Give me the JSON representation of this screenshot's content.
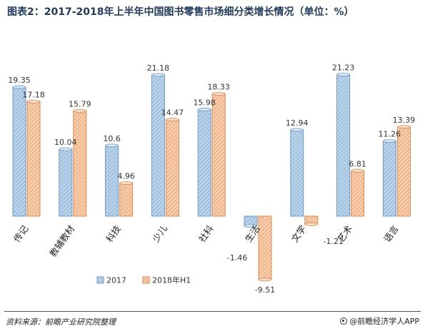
{
  "title": "图表2：2017-2018年上半年中国图书零售市场细分类增长情况（单位：%）",
  "source": "资料来源：前瞻产业研究院整理",
  "brand": "@前瞻经济学人APP",
  "brand_icon": "logo-circle-icon",
  "colors": {
    "s2017": "#9dbfdf",
    "s2017_edge": "#6f99c4",
    "s2018": "#f4b88a",
    "s2018_edge": "#d98a4f"
  },
  "chart_data": {
    "type": "bar",
    "categories": [
      "传记",
      "教辅教材",
      "科技",
      "少儿",
      "社科",
      "生活",
      "文学",
      "艺术",
      "语言"
    ],
    "series": [
      {
        "name": "2017",
        "values": [
          19.35,
          10.04,
          10.6,
          21.18,
          15.98,
          -1.46,
          12.94,
          21.23,
          11.26
        ]
      },
      {
        "name": "2018年H1",
        "values": [
          17.18,
          15.79,
          4.96,
          14.47,
          18.33,
          -9.51,
          -1.21,
          6.81,
          13.39
        ]
      }
    ],
    "labels": [
      [
        "19.35",
        "10.04",
        "10.6",
        "21.18",
        "15.98",
        "-1.46",
        "12.94",
        "21.23",
        "11.26"
      ],
      [
        "17.18",
        "15.79",
        "4.96",
        "14.47",
        "18.33",
        "-9.51",
        "-1.21",
        "6.81",
        "13.39"
      ]
    ],
    "ylim": [
      -12,
      23
    ],
    "legend_position": "bottom-left",
    "grid": false
  }
}
